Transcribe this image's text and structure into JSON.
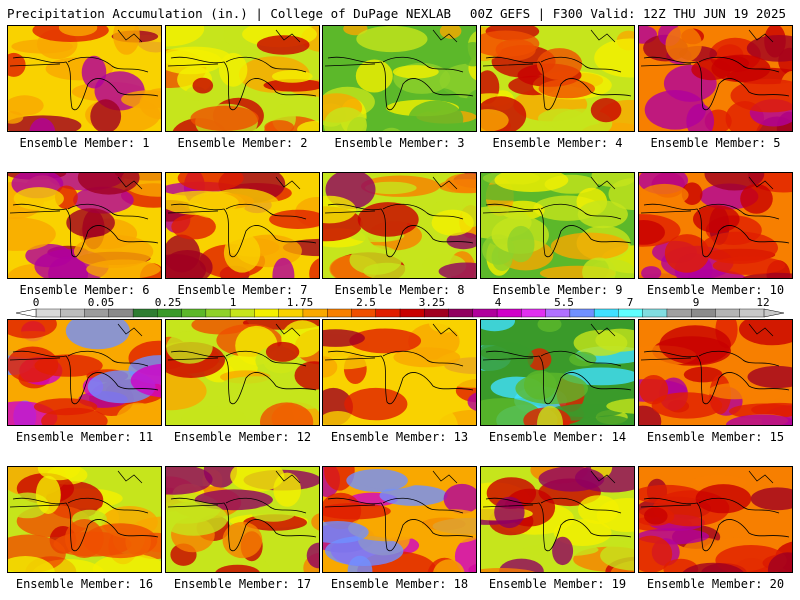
{
  "header": {
    "left": "Precipitation Accumulation (in.) | College of DuPage NEXLAB",
    "right": "00Z GEFS | F300 Valid: 12Z THU JUN 19 2025"
  },
  "colorbar": {
    "labels": [
      "0",
      "0.05",
      "0.25",
      "1",
      "1.75",
      "2.5",
      "3.25",
      "4",
      "5.5",
      "7",
      "9",
      "12"
    ],
    "colors": [
      "#d9d9d9",
      "#bdbdbd",
      "#9c9c9c",
      "#8a8a8a",
      "#2e7d32",
      "#3a9a2a",
      "#5cb82a",
      "#8fd12a",
      "#c6e51c",
      "#f4f000",
      "#f9d200",
      "#f9a800",
      "#f77f00",
      "#ef4f00",
      "#e01e00",
      "#c80000",
      "#a00020",
      "#900060",
      "#b0009c",
      "#d000c8",
      "#e030f0",
      "#b070ff",
      "#7090ff",
      "#40e0ff",
      "#60ffff",
      "#80dde0",
      "#a0a0a0",
      "#8c8c8c",
      "#b4b4b4",
      "#c8c8c8"
    ]
  },
  "members": [
    {
      "label": "Ensemble Member: 1",
      "tone": "wet-south"
    },
    {
      "label": "Ensemble Member: 2",
      "tone": "mixed"
    },
    {
      "label": "Ensemble Member: 3",
      "tone": "dry-green"
    },
    {
      "label": "Ensemble Member: 4",
      "tone": "mixed"
    },
    {
      "label": "Ensemble Member: 5",
      "tone": "wet"
    },
    {
      "label": "Ensemble Member: 6",
      "tone": "wet-south"
    },
    {
      "label": "Ensemble Member: 7",
      "tone": "wet-south"
    },
    {
      "label": "Ensemble Member: 8",
      "tone": "band"
    },
    {
      "label": "Ensemble Member: 9",
      "tone": "dry-green"
    },
    {
      "label": "Ensemble Member: 10",
      "tone": "wet"
    },
    {
      "label": "Ensemble Member: 11",
      "tone": "wet-north"
    },
    {
      "label": "Ensemble Member: 12",
      "tone": "mixed"
    },
    {
      "label": "Ensemble Member: 13",
      "tone": "wet-south"
    },
    {
      "label": "Ensemble Member: 14",
      "tone": "green-band"
    },
    {
      "label": "Ensemble Member: 15",
      "tone": "wet"
    },
    {
      "label": "Ensemble Member: 16",
      "tone": "mixed"
    },
    {
      "label": "Ensemble Member: 17",
      "tone": "band"
    },
    {
      "label": "Ensemble Member: 18",
      "tone": "wet-north"
    },
    {
      "label": "Ensemble Member: 19",
      "tone": "band"
    },
    {
      "label": "Ensemble Member: 20",
      "tone": "wet"
    }
  ]
}
